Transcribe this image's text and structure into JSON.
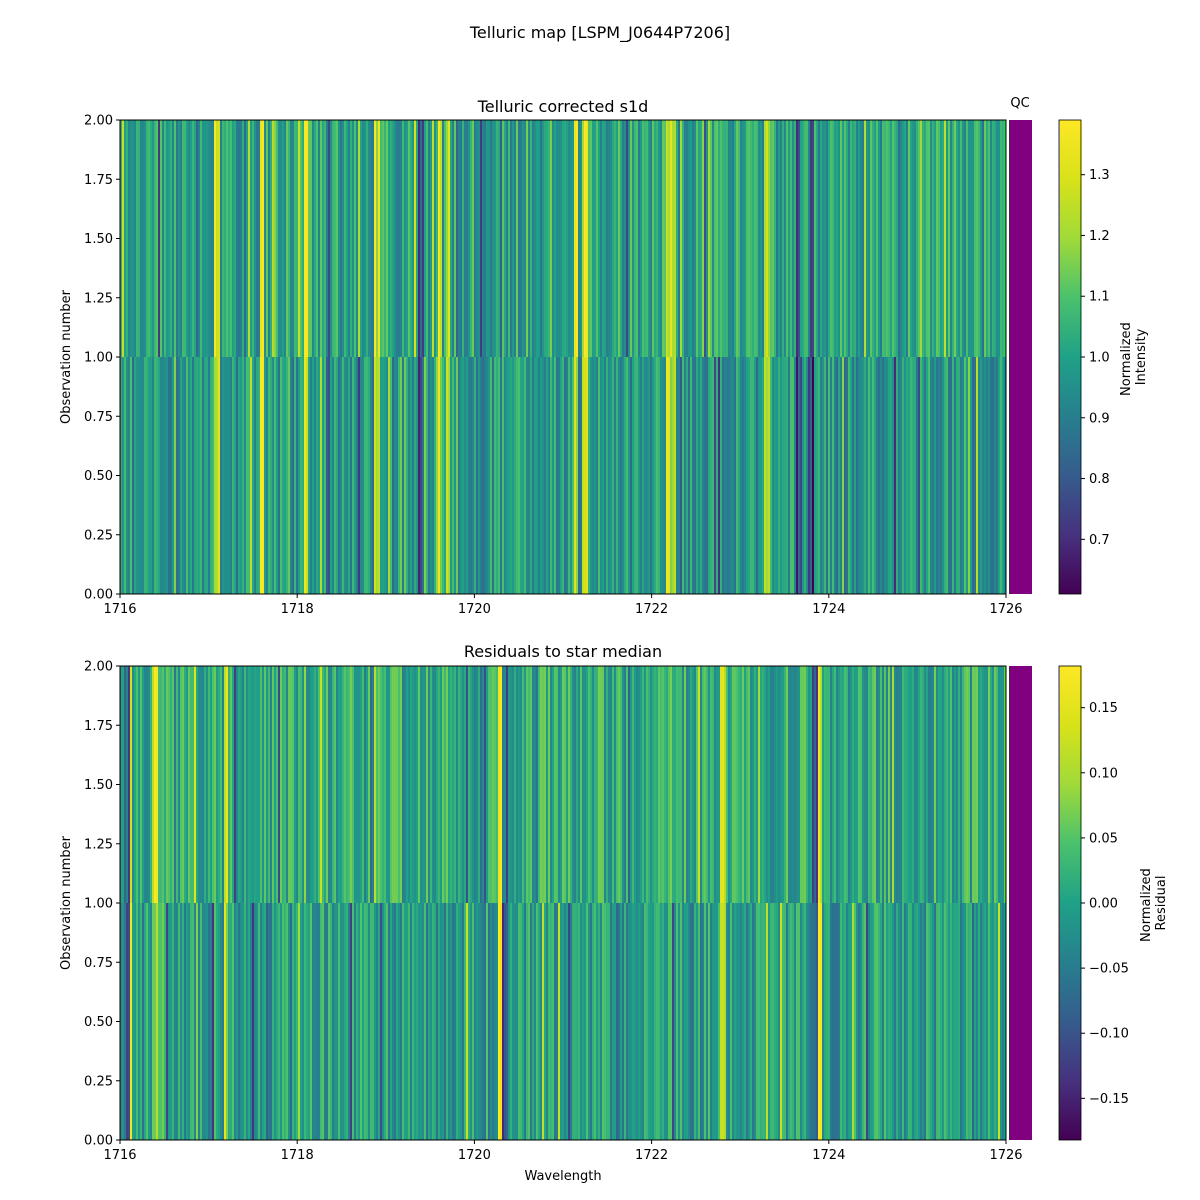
{
  "figure": {
    "suptitle": "Telluric map [LSPM_J0644P7206]"
  },
  "chart_data": [
    {
      "type": "heatmap",
      "title": "Telluric corrected s1d",
      "xlabel": "",
      "ylabel": "Observation number",
      "xlim": [
        1716,
        1726
      ],
      "ylim": [
        0,
        2
      ],
      "xticks": [
        "1716",
        "1718",
        "1720",
        "1722",
        "1724",
        "1726"
      ],
      "yticks": [
        "0.00",
        "0.25",
        "0.50",
        "0.75",
        "1.00",
        "1.25",
        "1.50",
        "1.75",
        "2.00"
      ],
      "rows": [
        {
          "y_range": [
            0,
            1
          ],
          "note": "observation 0"
        },
        {
          "y_range": [
            1,
            2
          ],
          "note": "observation 1"
        }
      ],
      "colormap": "viridis",
      "colorbar": {
        "label_line1": "Normalized",
        "label_line2": "Intensity",
        "range": [
          0.61,
          1.39
        ],
        "ticks": [
          "0.7",
          "0.8",
          "0.9",
          "1.0",
          "1.1",
          "1.2",
          "1.3"
        ]
      },
      "bright_lines_x": [
        1717.1,
        1717.6,
        1718.1,
        1718.9,
        1719.6,
        1719.7,
        1721.15,
        1721.25,
        1722.2,
        1722.25,
        1723.3
      ],
      "dark_lines_x": [
        1718.35,
        1719.4,
        1723.65,
        1723.8
      ],
      "qc": {
        "label": "QC",
        "color": "#800080"
      }
    },
    {
      "type": "heatmap",
      "title": "Residuals to star median",
      "xlabel": "Wavelength",
      "ylabel": "Observation number",
      "xlim": [
        1716,
        1726
      ],
      "ylim": [
        0,
        2
      ],
      "xticks": [
        "1716",
        "1718",
        "1720",
        "1722",
        "1724",
        "1726"
      ],
      "yticks": [
        "0.00",
        "0.25",
        "0.50",
        "0.75",
        "1.00",
        "1.25",
        "1.50",
        "1.75",
        "2.00"
      ],
      "colormap": "viridis",
      "colorbar": {
        "label_line1": "Normalized",
        "label_line2": "Residual",
        "range": [
          -0.182,
          0.182
        ],
        "ticks": [
          "−0.15",
          "−0.10",
          "−0.05",
          "0.00",
          "0.05",
          "0.10",
          "0.15"
        ]
      },
      "bright_lines_x": [
        1716.1,
        1716.4,
        1717.2,
        1720.3,
        1722.8,
        1723.9
      ],
      "dark_lines_x": [
        1716.08,
        1720.35,
        1723.85
      ],
      "qc": {
        "label": "",
        "color": "#800080"
      }
    }
  ]
}
